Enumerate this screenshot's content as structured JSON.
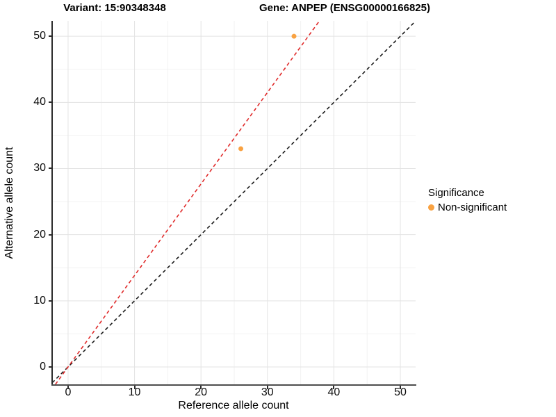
{
  "chart_data": {
    "type": "scatter",
    "title_left": "Variant: 15:90348348",
    "title_right": "Gene: ANPEP (ENSG00000166825)",
    "xlabel": "Reference allele count",
    "ylabel": "Alternative allele count",
    "xlim": [
      -2.4,
      52.3
    ],
    "ylim": [
      -2.63,
      52.33
    ],
    "x_ticks": [
      0,
      10,
      20,
      30,
      40,
      50
    ],
    "y_ticks": [
      0,
      10,
      20,
      30,
      40,
      50
    ],
    "x_minor_ticks": [
      5,
      15,
      25,
      35,
      45
    ],
    "y_minor_ticks": [
      5,
      15,
      25,
      35,
      45
    ],
    "grid": true,
    "series": [
      {
        "name": "Non-significant",
        "color": "#F9A242",
        "points": [
          {
            "x": 26,
            "y": 33
          },
          {
            "x": 34,
            "y": 50
          }
        ]
      }
    ],
    "lines": [
      {
        "name": "identity-line",
        "slope": 1.0,
        "intercept": 0,
        "color": "#1a1a1a",
        "dash": "5,4"
      },
      {
        "name": "allelic-ratio-line",
        "slope": 1.3833,
        "intercept": 0,
        "color": "#E02A2A",
        "dash": "5,4"
      }
    ],
    "legend": {
      "title": "Significance",
      "position": "right",
      "entries": [
        {
          "label": "Non-significant",
          "color": "#F9A242"
        }
      ]
    },
    "colors": {
      "background": "#ffffff",
      "grid_major": "#e3e3e3",
      "grid_minor": "#f2f2f2",
      "axis_line": "#2b2b2b",
      "point": "#F9A242",
      "red_line": "#E02A2A",
      "black_line": "#1a1a1a"
    }
  }
}
